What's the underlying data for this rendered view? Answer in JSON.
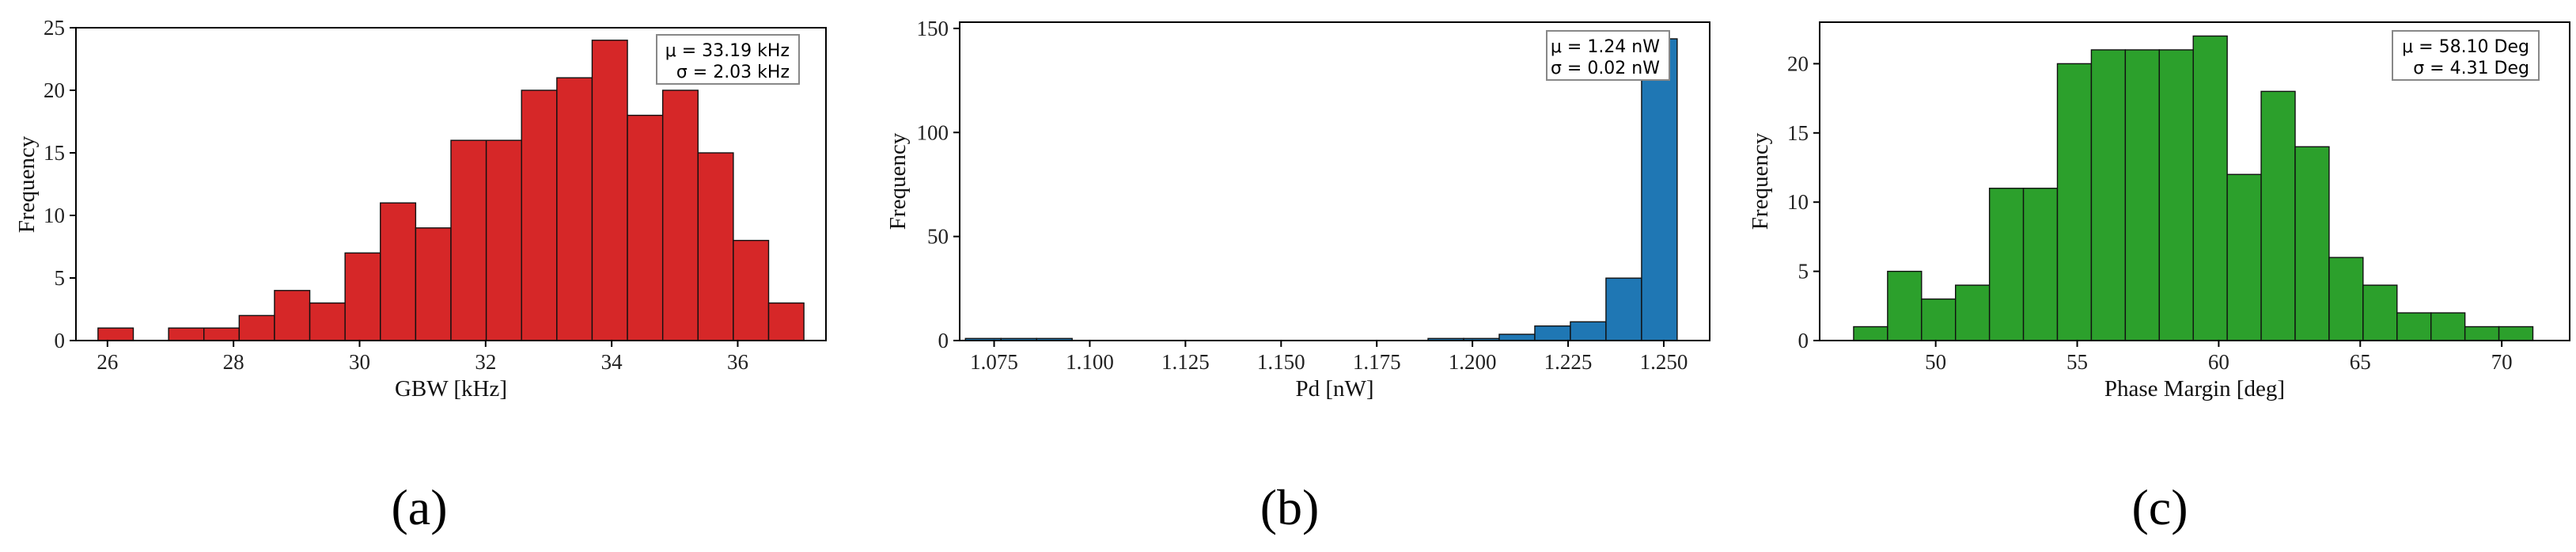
{
  "chart_data": [
    {
      "type": "bar",
      "panel": "(a)",
      "xlabel": "GBW [kHz]",
      "ylabel": "Frequency",
      "xlim": [
        25.5,
        37.4
      ],
      "ylim": [
        0,
        25
      ],
      "xticks": [
        26,
        28,
        30,
        32,
        34,
        36
      ],
      "yticks": [
        0,
        5,
        10,
        15,
        20,
        25
      ],
      "bar_color": "#d62728",
      "bins": [
        {
          "x0": 25.85,
          "x1": 26.41,
          "count": 1
        },
        {
          "x0": 26.41,
          "x1": 26.97,
          "count": 0
        },
        {
          "x0": 26.97,
          "x1": 27.53,
          "count": 1
        },
        {
          "x0": 27.53,
          "x1": 28.09,
          "count": 1
        },
        {
          "x0": 28.09,
          "x1": 28.65,
          "count": 2
        },
        {
          "x0": 28.65,
          "x1": 29.21,
          "count": 4
        },
        {
          "x0": 29.21,
          "x1": 29.77,
          "count": 3
        },
        {
          "x0": 29.77,
          "x1": 30.33,
          "count": 7
        },
        {
          "x0": 30.33,
          "x1": 30.89,
          "count": 11
        },
        {
          "x0": 30.89,
          "x1": 31.45,
          "count": 9
        },
        {
          "x0": 31.45,
          "x1": 32.01,
          "count": 16
        },
        {
          "x0": 32.01,
          "x1": 32.57,
          "count": 16
        },
        {
          "x0": 32.57,
          "x1": 33.13,
          "count": 20
        },
        {
          "x0": 33.13,
          "x1": 33.69,
          "count": 21
        },
        {
          "x0": 33.69,
          "x1": 34.25,
          "count": 24
        },
        {
          "x0": 34.25,
          "x1": 34.81,
          "count": 18
        },
        {
          "x0": 34.81,
          "x1": 35.37,
          "count": 20
        },
        {
          "x0": 35.37,
          "x1": 35.93,
          "count": 15
        },
        {
          "x0": 35.93,
          "x1": 36.49,
          "count": 8
        },
        {
          "x0": 36.49,
          "x1": 37.05,
          "count": 3
        }
      ],
      "stats": {
        "mu": "μ = 33.19 kHz",
        "sigma": "σ = 2.03 kHz"
      }
    },
    {
      "type": "bar",
      "panel": "(b)",
      "xlabel": "Pd [nW]",
      "ylabel": "Frequency",
      "xlim": [
        1.066,
        1.262
      ],
      "ylim": [
        0,
        153
      ],
      "xticks": [
        1.075,
        1.1,
        1.125,
        1.15,
        1.175,
        1.2,
        1.225,
        1.25
      ],
      "xtick_labels": [
        "1.075",
        "1.100",
        "1.125",
        "1.150",
        "1.175",
        "1.200",
        "1.225",
        "1.250"
      ],
      "yticks": [
        0,
        50,
        100,
        150
      ],
      "bar_color": "#1f77b4",
      "bins": [
        {
          "x0": 1.0675,
          "x1": 1.0768,
          "count": 1
        },
        {
          "x0": 1.0768,
          "x1": 1.0861,
          "count": 1
        },
        {
          "x0": 1.0861,
          "x1": 1.0954,
          "count": 1
        },
        {
          "x0": 1.0954,
          "x1": 1.1047,
          "count": 0
        },
        {
          "x0": 1.1047,
          "x1": 1.114,
          "count": 0
        },
        {
          "x0": 1.114,
          "x1": 1.1233,
          "count": 0
        },
        {
          "x0": 1.1233,
          "x1": 1.1326,
          "count": 0
        },
        {
          "x0": 1.1326,
          "x1": 1.1419,
          "count": 0
        },
        {
          "x0": 1.1419,
          "x1": 1.1512,
          "count": 0
        },
        {
          "x0": 1.1512,
          "x1": 1.1605,
          "count": 0
        },
        {
          "x0": 1.1605,
          "x1": 1.1698,
          "count": 0
        },
        {
          "x0": 1.1698,
          "x1": 1.1791,
          "count": 0
        },
        {
          "x0": 1.1791,
          "x1": 1.1884,
          "count": 0
        },
        {
          "x0": 1.1884,
          "x1": 1.1977,
          "count": 1
        },
        {
          "x0": 1.1977,
          "x1": 1.207,
          "count": 1
        },
        {
          "x0": 1.207,
          "x1": 1.2163,
          "count": 3
        },
        {
          "x0": 1.2163,
          "x1": 1.2256,
          "count": 7
        },
        {
          "x0": 1.2256,
          "x1": 1.2349,
          "count": 9
        },
        {
          "x0": 1.2349,
          "x1": 1.2442,
          "count": 30
        },
        {
          "x0": 1.2442,
          "x1": 1.2535,
          "count": 145
        }
      ],
      "stats": {
        "mu": "μ = 1.24 nW",
        "sigma": "σ = 0.02 nW"
      }
    },
    {
      "type": "bar",
      "panel": "(c)",
      "xlabel": "Phase Margin [deg]",
      "ylabel": "Frequency",
      "xlim": [
        45.9,
        72.4
      ],
      "ylim": [
        0,
        23
      ],
      "xticks": [
        50,
        55,
        60,
        65,
        70
      ],
      "yticks": [
        0,
        5,
        10,
        15,
        20
      ],
      "bar_color": "#2ca02c",
      "bins": [
        {
          "x0": 47.1,
          "x1": 48.3,
          "count": 1
        },
        {
          "x0": 48.3,
          "x1": 49.5,
          "count": 5
        },
        {
          "x0": 49.5,
          "x1": 50.7,
          "count": 3
        },
        {
          "x0": 50.7,
          "x1": 51.9,
          "count": 4
        },
        {
          "x0": 51.9,
          "x1": 53.1,
          "count": 11
        },
        {
          "x0": 53.1,
          "x1": 54.3,
          "count": 11
        },
        {
          "x0": 54.3,
          "x1": 55.5,
          "count": 20
        },
        {
          "x0": 55.5,
          "x1": 56.7,
          "count": 21
        },
        {
          "x0": 56.7,
          "x1": 57.9,
          "count": 21
        },
        {
          "x0": 57.9,
          "x1": 59.1,
          "count": 21
        },
        {
          "x0": 59.1,
          "x1": 60.3,
          "count": 22
        },
        {
          "x0": 60.3,
          "x1": 61.5,
          "count": 12
        },
        {
          "x0": 61.5,
          "x1": 62.7,
          "count": 18
        },
        {
          "x0": 62.7,
          "x1": 63.9,
          "count": 14
        },
        {
          "x0": 63.9,
          "x1": 65.1,
          "count": 6
        },
        {
          "x0": 65.1,
          "x1": 66.3,
          "count": 4
        },
        {
          "x0": 66.3,
          "x1": 67.5,
          "count": 2
        },
        {
          "x0": 67.5,
          "x1": 68.7,
          "count": 2
        },
        {
          "x0": 68.7,
          "x1": 69.9,
          "count": 1
        },
        {
          "x0": 69.9,
          "x1": 71.1,
          "count": 1
        }
      ],
      "stats": {
        "mu": "μ = 58.10 Deg",
        "sigma": "σ = 4.31 Deg"
      }
    }
  ]
}
